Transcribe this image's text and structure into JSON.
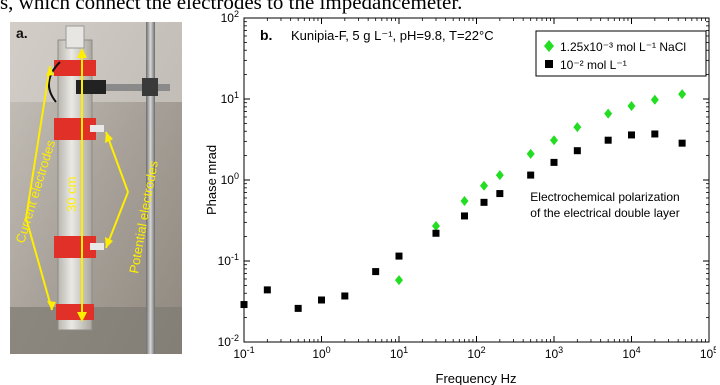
{
  "caption_fragment": "s, which connect the electrodes to the impedancemeter.",
  "photo": {
    "panel_label": "a.",
    "current_label": "Current electrodes",
    "potential_label": "Potential electrodes",
    "length_label": "30 cm"
  },
  "chart_data": {
    "type": "scatter",
    "panel_label": "b.",
    "title": "Kunipia-F, 5 g L⁻¹, pH=9.8, T=22°C",
    "xlabel": "Frequency Hz",
    "ylabel": "Phase mrad",
    "xscale": "log",
    "yscale": "log",
    "xlim": [
      0.1,
      100000
    ],
    "ylim": [
      0.01,
      100
    ],
    "x_ticks": [
      {
        "v": 0.1,
        "base": "10",
        "exp": "-1"
      },
      {
        "v": 1,
        "base": "10",
        "exp": "0"
      },
      {
        "v": 10,
        "base": "10",
        "exp": "1"
      },
      {
        "v": 100,
        "base": "10",
        "exp": "2"
      },
      {
        "v": 1000,
        "base": "10",
        "exp": "3"
      },
      {
        "v": 10000,
        "base": "10",
        "exp": "4"
      },
      {
        "v": 100000,
        "base": "10",
        "exp": "5"
      }
    ],
    "y_ticks": [
      {
        "v": 0.01,
        "base": "10",
        "exp": "-2"
      },
      {
        "v": 0.1,
        "base": "10",
        "exp": "-1"
      },
      {
        "v": 1,
        "base": "10",
        "exp": "0"
      },
      {
        "v": 10,
        "base": "10",
        "exp": "1"
      },
      {
        "v": 100,
        "base": "10",
        "exp": "2"
      }
    ],
    "annotation": [
      "Electrochemical polarization",
      "of the electrical double layer"
    ],
    "legend_position": "top-right",
    "series": [
      {
        "name": "1.25x10⁻³ mol L⁻¹ NaCl",
        "marker": "diamond",
        "color": "#22dd22",
        "points": [
          [
            10,
            0.058
          ],
          [
            30,
            0.27
          ],
          [
            70,
            0.55
          ],
          [
            125,
            0.85
          ],
          [
            200,
            1.15
          ],
          [
            500,
            2.1
          ],
          [
            1000,
            3.1
          ],
          [
            2000,
            4.5
          ],
          [
            5000,
            6.6
          ],
          [
            10000,
            8.2
          ],
          [
            20000,
            9.8
          ],
          [
            45000,
            11.5
          ]
        ]
      },
      {
        "name": "10⁻² mol L⁻¹",
        "marker": "square",
        "color": "#000000",
        "points": [
          [
            0.1,
            0.029
          ],
          [
            0.2,
            0.044
          ],
          [
            0.5,
            0.026
          ],
          [
            1,
            0.033
          ],
          [
            2,
            0.037
          ],
          [
            5,
            0.074
          ],
          [
            10,
            0.115
          ],
          [
            30,
            0.22
          ],
          [
            70,
            0.36
          ],
          [
            125,
            0.53
          ],
          [
            200,
            0.68
          ],
          [
            500,
            1.15
          ],
          [
            1000,
            1.65
          ],
          [
            2000,
            2.3
          ],
          [
            5000,
            3.1
          ],
          [
            10000,
            3.6
          ],
          [
            20000,
            3.7
          ],
          [
            45000,
            2.85
          ]
        ]
      }
    ]
  }
}
